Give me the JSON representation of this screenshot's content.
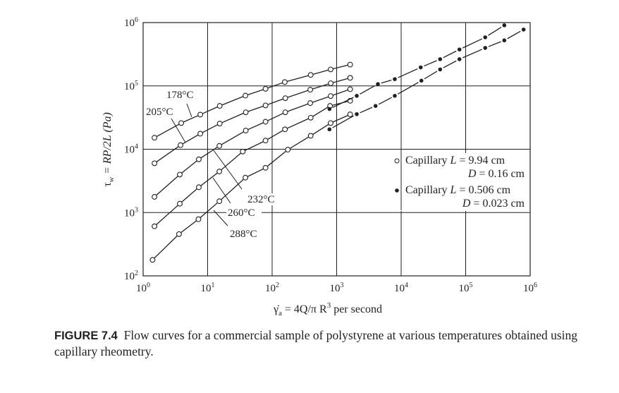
{
  "chart_data": {
    "type": "scatter",
    "scale": "log-log",
    "title": "",
    "xlabel": {
      "main": "γ̇",
      "sub": "a",
      "rest": " = 4Q/π R",
      "sup": "3",
      "tail": " per second"
    },
    "ylabel": {
      "main": "τ",
      "sub": "w",
      "rest": " = RP/2L (Pa)"
    },
    "xlim": [
      1,
      1000000
    ],
    "ylim": [
      100,
      1000000
    ],
    "grid": true,
    "x_ticks": [
      {
        "base": "10",
        "exp": "0",
        "value": 1
      },
      {
        "base": "10",
        "exp": "1",
        "value": 10
      },
      {
        "base": "10",
        "exp": "2",
        "value": 100
      },
      {
        "base": "10",
        "exp": "3",
        "value": 1000
      },
      {
        "base": "10",
        "exp": "4",
        "value": 10000
      },
      {
        "base": "10",
        "exp": "5",
        "value": 100000
      },
      {
        "base": "10",
        "exp": "6",
        "value": 1000000
      }
    ],
    "y_ticks": [
      {
        "base": "10",
        "exp": "2",
        "value": 100
      },
      {
        "base": "10",
        "exp": "3",
        "value": 1000
      },
      {
        "base": "10",
        "exp": "4",
        "value": 10000
      },
      {
        "base": "10",
        "exp": "5",
        "value": 100000
      },
      {
        "base": "10",
        "exp": "6",
        "value": 1000000
      }
    ],
    "series": [
      {
        "name": "178°C",
        "marker": "open",
        "points": [
          [
            1.5,
            15200
          ],
          [
            3.9,
            25900
          ],
          [
            7.7,
            35200
          ],
          [
            15.4,
            48300
          ],
          [
            38.5,
            70300
          ],
          [
            79,
            89900
          ],
          [
            157,
            115000
          ],
          [
            396,
            149000
          ],
          [
            807,
            182000
          ],
          [
            1620,
            217000
          ]
        ]
      },
      {
        "name": "205°C",
        "marker": "open",
        "points": [
          [
            1.5,
            6000
          ],
          [
            3.8,
            11600
          ],
          [
            7.7,
            17600
          ],
          [
            15.4,
            25400
          ],
          [
            39,
            38300
          ],
          [
            79,
            49200
          ],
          [
            160,
            64000
          ],
          [
            390,
            87100
          ],
          [
            810,
            110000
          ],
          [
            1620,
            134000
          ]
        ]
      },
      {
        "name": "232°C",
        "marker": "open",
        "points": [
          [
            1.5,
            1770
          ],
          [
            3.7,
            3980
          ],
          [
            7.3,
            6930
          ],
          [
            15.2,
            11300
          ],
          [
            39,
            19700
          ],
          [
            79,
            27200
          ],
          [
            160,
            38300
          ],
          [
            390,
            53500
          ],
          [
            807,
            69100
          ],
          [
            1620,
            88700
          ]
        ]
      },
      {
        "name": "260°C",
        "marker": "open",
        "points": [
          [
            1.5,
            607
          ],
          [
            3.7,
            1380
          ],
          [
            7.3,
            2510
          ],
          [
            15.2,
            4450
          ],
          [
            35,
            9190
          ],
          [
            79,
            13700
          ],
          [
            158,
            20600
          ],
          [
            396,
            31500
          ],
          [
            790,
            48300
          ],
          [
            1620,
            58200
          ]
        ]
      },
      {
        "name": "288°C",
        "marker": "open",
        "points": [
          [
            1.4,
            179
          ],
          [
            3.6,
            457
          ],
          [
            7.2,
            784
          ],
          [
            15.2,
            1510
          ],
          [
            38.5,
            3560
          ],
          [
            79,
            5090
          ],
          [
            175,
            9840
          ],
          [
            396,
            16300
          ],
          [
            807,
            25900
          ],
          [
            1620,
            35500
          ]
        ]
      },
      {
        "name": "Capillary L = 0.506 cm (upper)",
        "marker": "filled",
        "points": [
          [
            774,
            43200
          ],
          [
            2050,
            69700
          ],
          [
            4360,
            107000
          ],
          [
            7970,
            128000
          ],
          [
            20100,
            196000
          ],
          [
            40200,
            264000
          ],
          [
            80100,
            376000
          ],
          [
            201000,
            585000
          ],
          [
            397000,
            906000
          ]
        ]
      },
      {
        "name": "Capillary L = 0.506 cm (lower)",
        "marker": "filled",
        "points": [
          [
            774,
            20600
          ],
          [
            2050,
            35800
          ],
          [
            4010,
            48300
          ],
          [
            7970,
            69700
          ],
          [
            20600,
            121000
          ],
          [
            40200,
            182000
          ],
          [
            80100,
            264000
          ],
          [
            201000,
            398000
          ],
          [
            397000,
            524000
          ],
          [
            791000,
            776000
          ]
        ]
      }
    ],
    "annotations": [
      {
        "text": "178°C"
      },
      {
        "text": "205°C"
      },
      {
        "text": "232°C"
      },
      {
        "text": "260°C"
      },
      {
        "text": "288°C"
      }
    ],
    "legend": {
      "placement": "right-middle",
      "entries": [
        {
          "marker": "open",
          "label": "Capillary ",
          "l_var": "L",
          "l_val": " = 9.94 cm",
          "d_var": "D",
          "d_val": " = 0.16 cm"
        },
        {
          "marker": "filled",
          "label": "Capillary ",
          "l_var": "L",
          "l_val": " = 0.506 cm",
          "d_var": "D",
          "d_val": " = 0.023 cm"
        }
      ]
    }
  },
  "caption": {
    "label": "FIGURE 7.4",
    "text": "Flow curves for a commercial sample of polystyrene at various temperatures obtained using capillary rheometry."
  }
}
